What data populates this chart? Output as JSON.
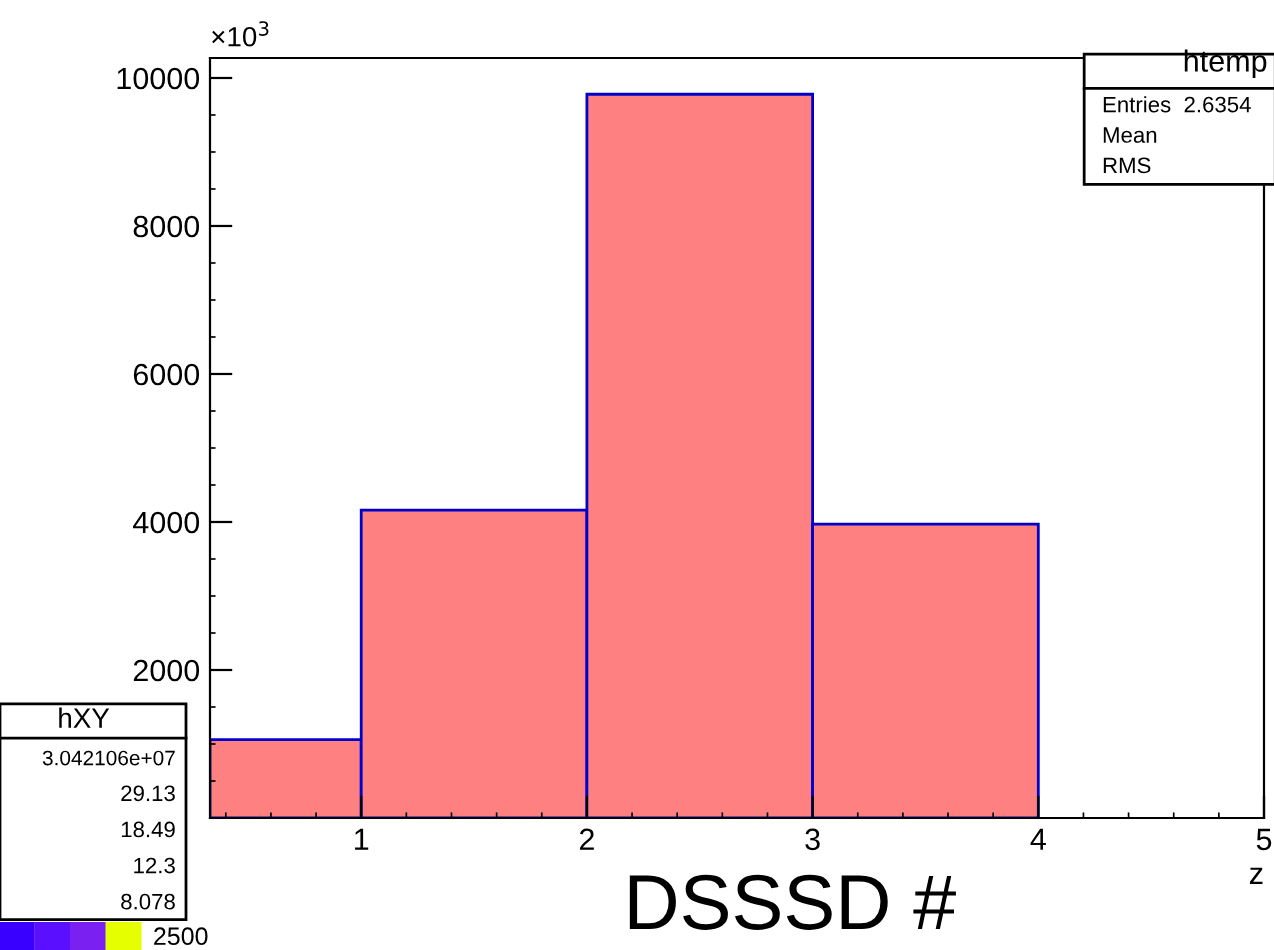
{
  "chart_data": {
    "type": "histogram",
    "bins": [
      0.33,
      1,
      2,
      3,
      4
    ],
    "values": [
      1060,
      4160,
      9780,
      3970
    ],
    "color": "#ff8080",
    "xlabel": "z",
    "xlim": [
      0.33,
      5
    ],
    "ylim": [
      0,
      10270
    ],
    "xticks": [
      1,
      2,
      3,
      4,
      5
    ],
    "yticks": [
      2000,
      4000,
      6000,
      8000,
      10000
    ],
    "grid": false,
    "annotations": [
      "×10$^{3}$",
      "DSSSD #",
      "htemp",
      "Entries  2.6354",
      "Mean",
      "RMS",
      "hXY",
      "3.042106e+07",
      "29.13",
      "18.49",
      "12.3",
      "8.078",
      "2500"
    ]
  }
}
